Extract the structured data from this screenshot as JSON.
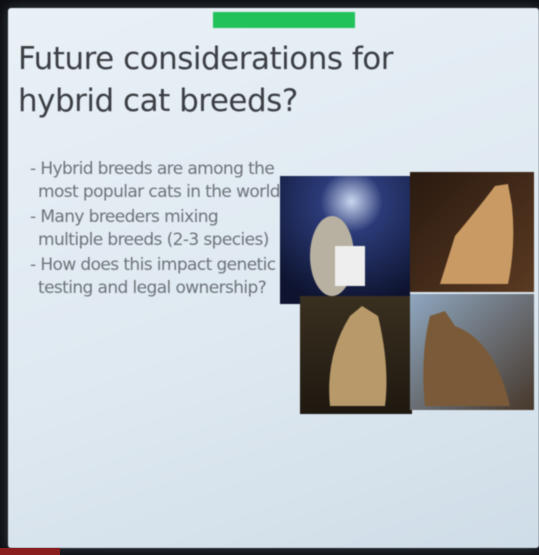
{
  "slide": {
    "title": "Future considerations for hybrid cat breeds?",
    "bullets": [
      "Hybrid breeds are among the most popular cats in the world",
      "Many breeders mixing multiple breeds (2-3 species)",
      "How does this impact genetic testing and legal ownership?"
    ]
  }
}
